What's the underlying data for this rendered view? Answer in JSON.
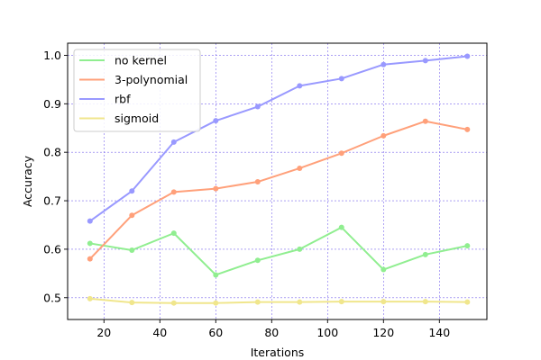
{
  "chart_data": {
    "type": "line",
    "xlabel": "Iterations",
    "ylabel": "Accuracy",
    "xlim": [
      7,
      157
    ],
    "ylim": [
      0.455,
      1.025
    ],
    "xticks": [
      20,
      40,
      60,
      80,
      100,
      120,
      140
    ],
    "yticks": [
      0.5,
      0.6,
      0.7,
      0.8,
      0.9,
      1.0
    ],
    "ytick_labels": [
      "0.5",
      "0.6",
      "0.7",
      "0.8",
      "0.9",
      "1.0"
    ],
    "grid": true,
    "grid_color": "#7b68ee",
    "legend_position": "upper-left",
    "x": [
      15,
      30,
      45,
      60,
      75,
      90,
      105,
      120,
      135,
      150
    ],
    "series": [
      {
        "name": "no kernel",
        "color": "#90ee90",
        "values": [
          0.612,
          0.598,
          0.633,
          0.547,
          0.577,
          0.6,
          0.645,
          0.558,
          0.589,
          0.607
        ]
      },
      {
        "name": "3-polynomial",
        "color": "#ffa07a",
        "values": [
          0.58,
          0.67,
          0.718,
          0.725,
          0.739,
          0.767,
          0.798,
          0.834,
          0.864,
          0.847
        ]
      },
      {
        "name": "rbf",
        "color": "#9999ff",
        "values": [
          0.658,
          0.72,
          0.821,
          0.865,
          0.894,
          0.937,
          0.952,
          0.981,
          0.989,
          0.998
        ]
      },
      {
        "name": "sigmoid",
        "color": "#f0e68c",
        "values": [
          0.498,
          0.49,
          0.489,
          0.489,
          0.491,
          0.491,
          0.492,
          0.492,
          0.492,
          0.491
        ]
      }
    ]
  }
}
